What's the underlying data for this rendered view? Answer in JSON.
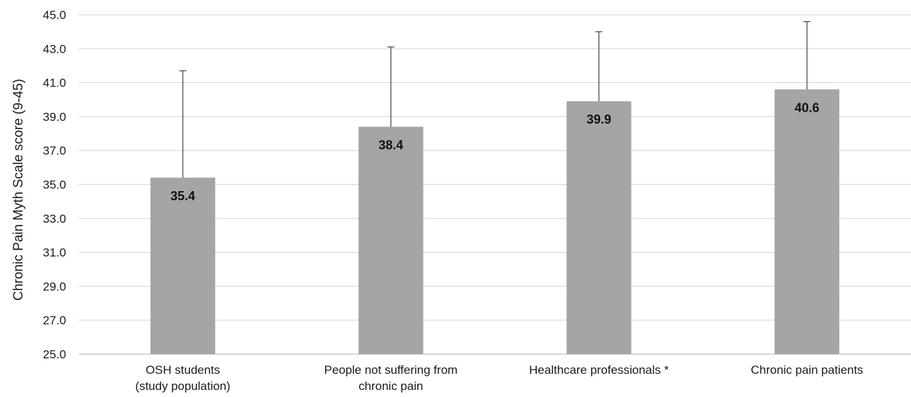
{
  "chart_data": {
    "type": "bar",
    "title": "",
    "xlabel": "",
    "ylabel": "Chronic Pain Myth Scale score (9-45)",
    "ylim": [
      25.0,
      45.0
    ],
    "yticks": [
      25.0,
      27.0,
      29.0,
      31.0,
      33.0,
      35.0,
      37.0,
      39.0,
      41.0,
      43.0,
      45.0
    ],
    "ytick_labels": [
      "25.0",
      "27.0",
      "29.0",
      "31.0",
      "33.0",
      "35.0",
      "37.0",
      "39.0",
      "41.0",
      "43.0",
      "45.0"
    ],
    "grid": true,
    "legend": "none",
    "categories": [
      [
        "OSH students",
        "(study population)"
      ],
      [
        "People not suffering from",
        "chronic pain"
      ],
      [
        "Healthcare professionals *"
      ],
      [
        "Chronic pain patients"
      ]
    ],
    "values": [
      35.4,
      38.4,
      39.9,
      40.6
    ],
    "value_labels": [
      "35.4",
      "38.4",
      "39.9",
      "40.6"
    ],
    "error_upper": [
      41.7,
      43.1,
      44.0,
      44.6
    ],
    "colors": {
      "bar": "#a5a5a5",
      "grid": "#d9d9d9",
      "error_bar": "#595959",
      "axis": "#bfbfbf"
    }
  }
}
